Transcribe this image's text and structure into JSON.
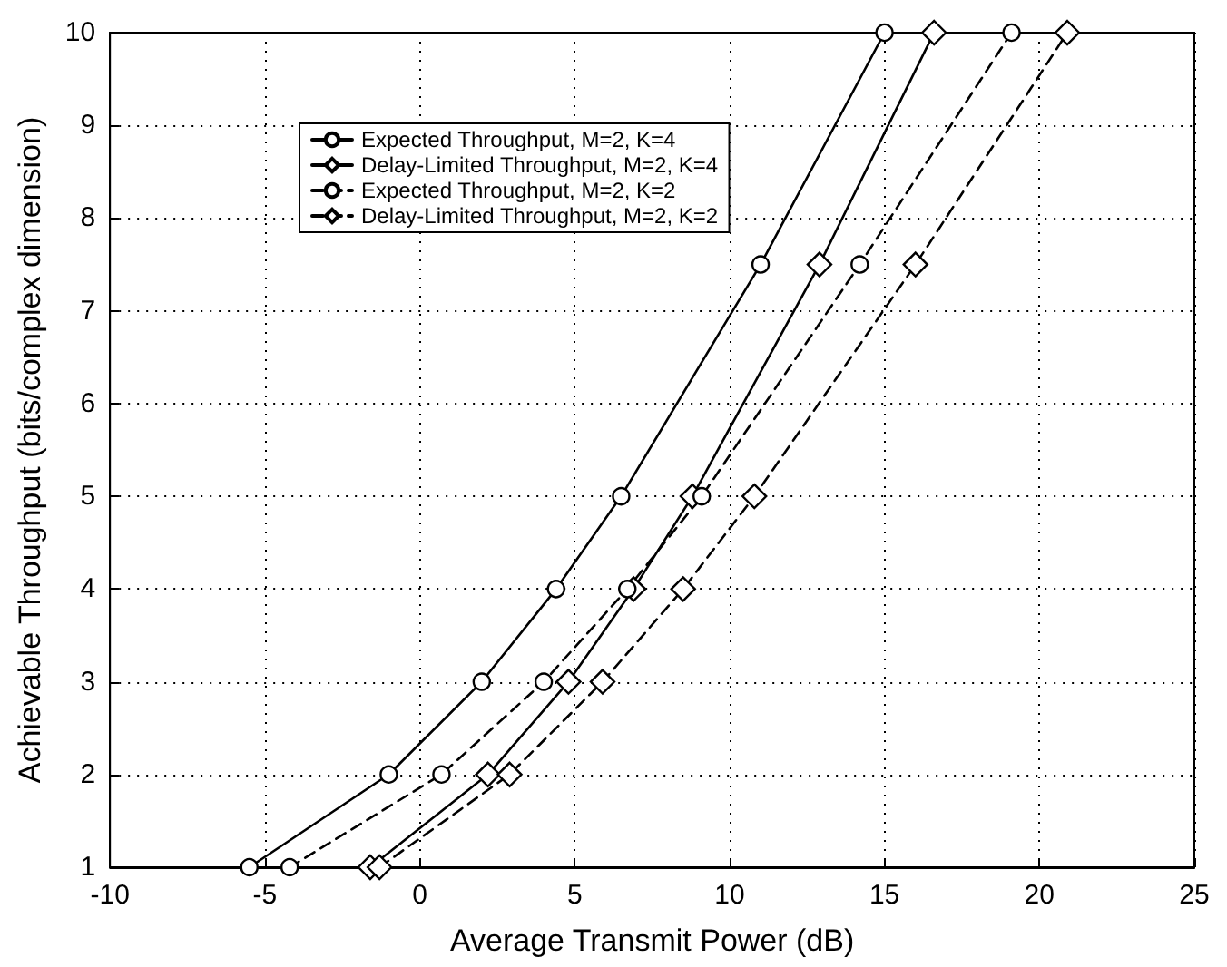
{
  "chart_data": {
    "type": "line",
    "xlabel": "Average Transmit Power (dB)",
    "ylabel": "Achievable Throughput (bits/complex dimension)",
    "xlim": [
      -10,
      25
    ],
    "xticks": [
      -10,
      -5,
      0,
      5,
      10,
      15,
      20,
      25
    ],
    "ylim": [
      1,
      10
    ],
    "yticks": [
      1,
      2,
      3,
      4,
      5,
      6,
      7,
      8,
      9,
      10
    ],
    "grid": true,
    "legend": "top left",
    "series": [
      {
        "name": "Expected Throughput, M=2, K=4",
        "color": "#000000",
        "marker": "circle",
        "line_style": "solid",
        "x": [
          -5.5,
          -1,
          2,
          4.4,
          6.5,
          11,
          15
        ],
        "values": [
          1,
          2,
          3,
          4,
          5,
          7.5,
          10
        ]
      },
      {
        "name": "Delay-Limited Throughput, M=2, K=4",
        "color": "#000000",
        "marker": "diamond",
        "line_style": "solid",
        "x": [
          -1.6,
          2.2,
          4.8,
          6.9,
          8.8,
          12.9,
          16.6
        ],
        "values": [
          1,
          2,
          3,
          4,
          5,
          7.5,
          10
        ]
      },
      {
        "name": "Expected Throughput, M=2, K=2",
        "color": "#000000",
        "marker": "circle",
        "line_style": "dashed",
        "x": [
          -4.2,
          0.7,
          4,
          6.7,
          9.1,
          14.2,
          19.1
        ],
        "values": [
          1,
          2,
          3,
          4,
          5,
          7.5,
          10
        ]
      },
      {
        "name": "Delay-Limited Throughput, M=2, K=2",
        "color": "#000000",
        "marker": "diamond",
        "line_style": "dashed",
        "x": [
          -1.3,
          2.9,
          5.9,
          8.5,
          10.8,
          16,
          20.9
        ],
        "values": [
          1,
          2,
          3,
          4,
          5,
          7.5,
          10
        ]
      }
    ]
  }
}
